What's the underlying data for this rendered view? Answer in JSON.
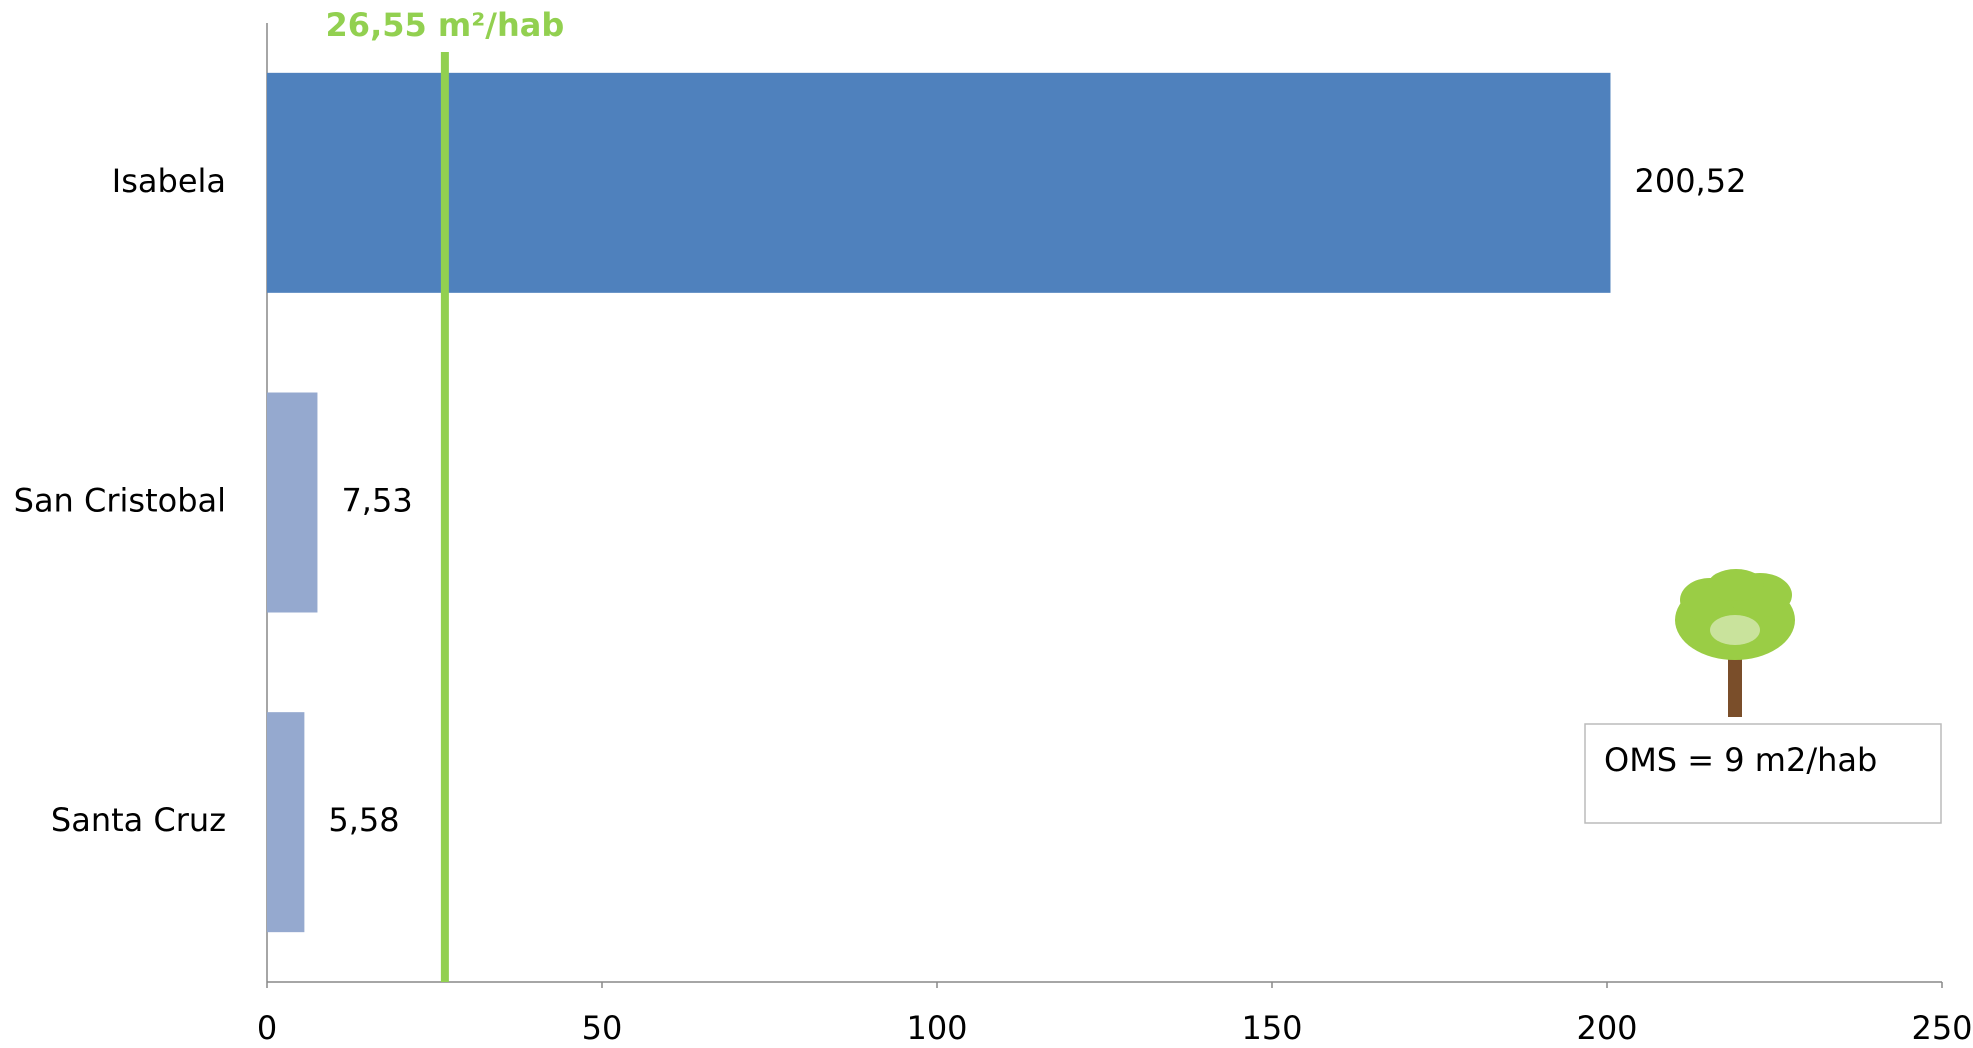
{
  "chart_data": {
    "type": "bar",
    "orientation": "horizontal",
    "categories": [
      "Isabela",
      "San Cristobal",
      "Santa Cruz"
    ],
    "values": [
      200.52,
      7.53,
      5.58
    ],
    "value_labels": [
      "200,52",
      "7,53",
      "5,58"
    ],
    "colors": [
      "#4f81bd",
      "#95a9cf",
      "#95a9cf"
    ],
    "xlim": [
      0,
      250
    ],
    "xticks": [
      0,
      50,
      100,
      150,
      200,
      250
    ],
    "reference_line": {
      "value": 26.55,
      "label": "26,55 m²/hab",
      "color": "#92d050"
    },
    "annotation": "OMS = 9 m2/hab"
  }
}
